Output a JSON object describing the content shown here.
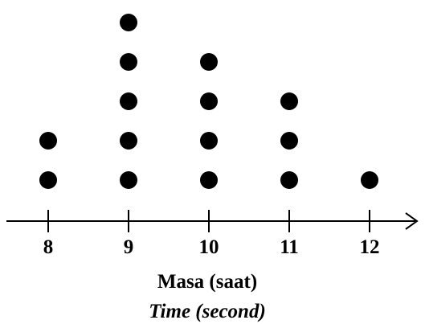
{
  "chart_data": {
    "type": "scatter",
    "subtype": "dot-plot",
    "categories": [
      "8",
      "9",
      "10",
      "11",
      "12"
    ],
    "x": [
      8,
      9,
      10,
      11,
      12
    ],
    "counts": [
      2,
      5,
      4,
      3,
      1
    ],
    "xlabel": "Masa (saat)",
    "xlabel_secondary": "Time (second)",
    "title": "",
    "ylabel": "",
    "dot_color": "#000000",
    "axis_color": "#000000",
    "grid": false
  }
}
